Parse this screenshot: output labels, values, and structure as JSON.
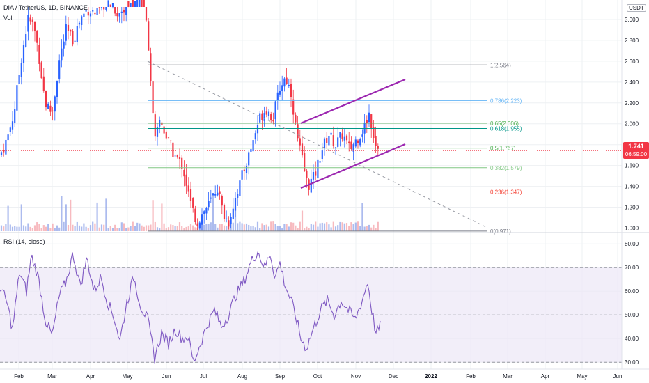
{
  "header": {
    "symbol": "DIA / TetherUS, 1D, BINANCE",
    "volume_label": "Vol",
    "currency": "USDT"
  },
  "price_badge": {
    "price": "1.741",
    "countdown": "06:59:00"
  },
  "rsi": {
    "title": "RSI (14, close)"
  },
  "colors": {
    "up": "#2962ff",
    "down": "#f23645",
    "rsi_line": "#7e57c2",
    "channel": "#9c27b0",
    "bg_band": "#ede7f6",
    "grid": "#eef0f3"
  },
  "chart_data": [
    {
      "type": "candlestick",
      "y_axis_ticks": [
        "3.000",
        "2.800",
        "2.600",
        "2.400",
        "2.200",
        "2.000",
        "1.800",
        "1.600",
        "1.400",
        "1.200",
        "1.000"
      ],
      "ylim": [
        0.97,
        3.12
      ],
      "x_axis_labels": [
        "Feb",
        "Mar",
        "Apr",
        "May",
        "Jun",
        "Jul",
        "Aug",
        "Sep",
        "Oct",
        "Nov",
        "Dec",
        "2022",
        "Feb",
        "Mar",
        "Apr",
        "May",
        "Jun"
      ],
      "fib_levels": [
        {
          "label": "1(2.564)",
          "value": 2.564,
          "color": "#787b86"
        },
        {
          "label": "0.786(2.223)",
          "value": 2.223,
          "color": "#64b5f6"
        },
        {
          "label": "0.65(2.006)",
          "value": 2.006,
          "color": "#4caf50"
        },
        {
          "label": "0.618(1.955)",
          "value": 1.955,
          "color": "#009688"
        },
        {
          "label": "0.5(1.767)",
          "value": 1.767,
          "color": "#4caf50"
        },
        {
          "label": "0.382(1.579)",
          "value": 1.579,
          "color": "#81c784"
        },
        {
          "label": "0.236(1.347)",
          "value": 1.347,
          "color": "#f44336"
        },
        {
          "label": "0(0.971)",
          "value": 0.971,
          "color": "#787b86"
        }
      ],
      "current_price": 1.741,
      "pattern": "ascending channel (two parallel purple trendlines) and dashed descending trendline"
    },
    {
      "type": "line",
      "name": "RSI (14, close)",
      "y_axis_ticks": [
        "80.00",
        "70.00",
        "60.00",
        "50.00",
        "40.00",
        "30.00"
      ],
      "ylim": [
        28,
        83
      ],
      "bands": [
        70,
        50,
        30
      ]
    }
  ]
}
